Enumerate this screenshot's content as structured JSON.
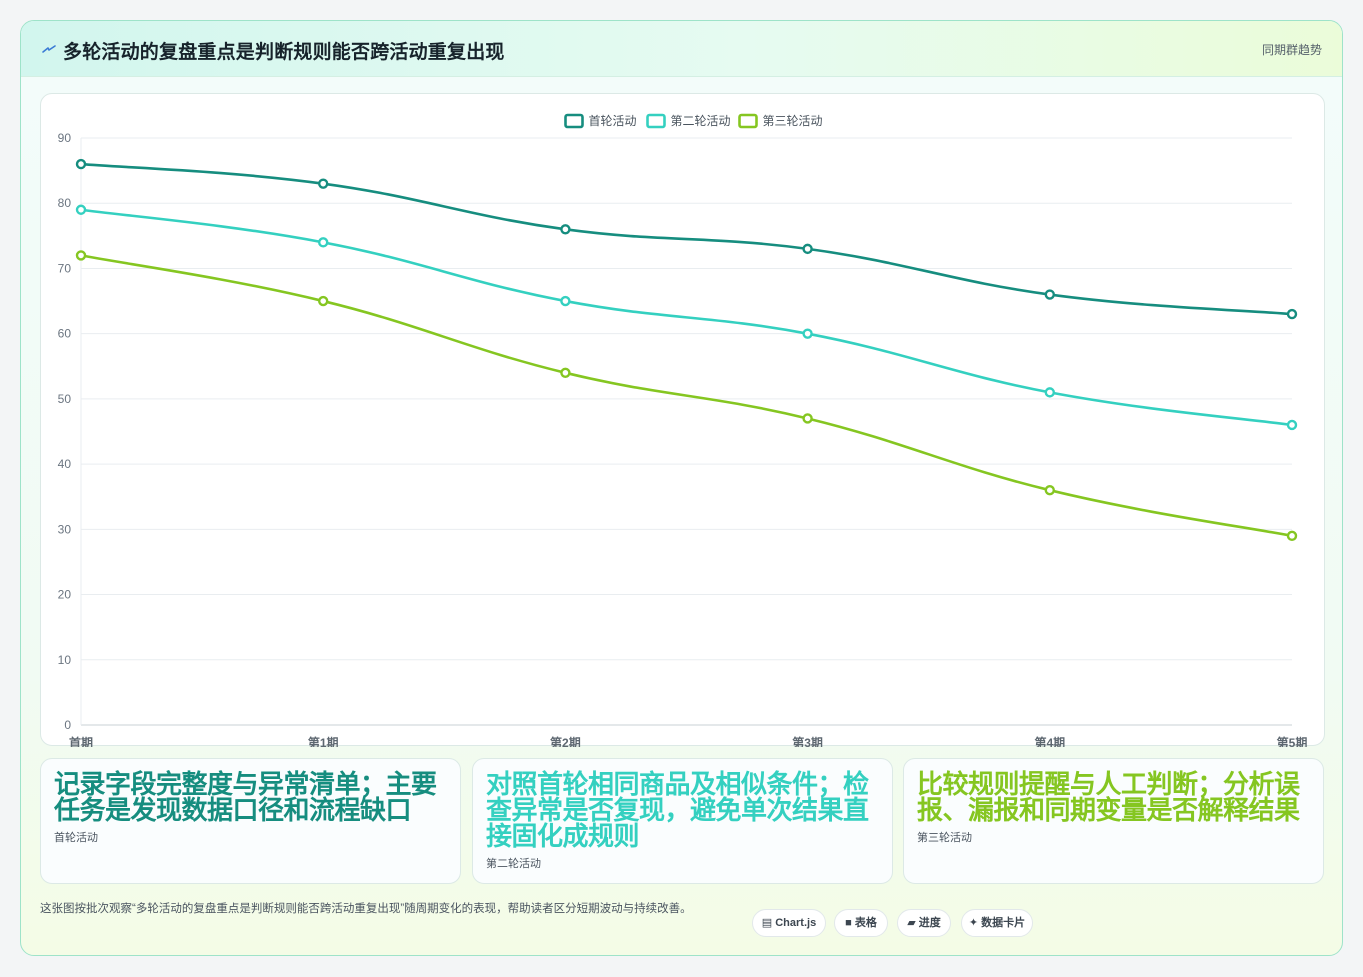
{
  "header": {
    "icon": "bolt-icon",
    "title": "多轮活动的复盘重点是判断规则能否跨活动重复出现",
    "tag": "同期群趋势"
  },
  "chart_data": {
    "type": "line",
    "x": [
      "首期",
      "第1期",
      "第2期",
      "第3期",
      "第4期",
      "第5期"
    ],
    "ylim": [
      0,
      90
    ],
    "yticks": [
      0,
      10,
      20,
      30,
      40,
      50,
      60,
      70,
      80,
      90
    ],
    "grid": true,
    "legend_position": "top-center",
    "series": [
      {
        "name": "首轮活动",
        "color": "#168d7f",
        "values": [
          86,
          83,
          76,
          73,
          66,
          63
        ]
      },
      {
        "name": "第二轮活动",
        "color": "#34d0c0",
        "values": [
          79,
          74,
          65,
          60,
          51,
          46
        ]
      },
      {
        "name": "第三轮活动",
        "color": "#85c621",
        "values": [
          72,
          65,
          54,
          47,
          36,
          29
        ]
      }
    ]
  },
  "cards": [
    {
      "headline": "记录字段完整度与异常清单；主要任务是发现数据口径和流程缺口",
      "label": "首轮活动",
      "color": "#168d7f"
    },
    {
      "headline": "对照首轮相同商品及相似条件；检查异常是否复现，避免单次结果直接固化成规则",
      "label": "第二轮活动",
      "color": "#34d0c0"
    },
    {
      "headline": "比较规则提醒与人工判断；分析误报、漏报和同期变量是否解释结果",
      "label": "第三轮活动",
      "color": "#85c621"
    }
  ],
  "footer": {
    "note": "这张图按批次观察“多轮活动的复盘重点是判断规则能否跨活动重复出现”随周期变化的表现，帮助读者区分短期波动与持续改善。",
    "pills": [
      {
        "icon": "chart-icon",
        "label": "Chart.js"
      },
      {
        "icon": "table-icon",
        "label": "表格"
      },
      {
        "icon": "progress-icon",
        "label": "进度"
      },
      {
        "icon": "sparkle-icon",
        "label": "数据卡片"
      }
    ]
  }
}
